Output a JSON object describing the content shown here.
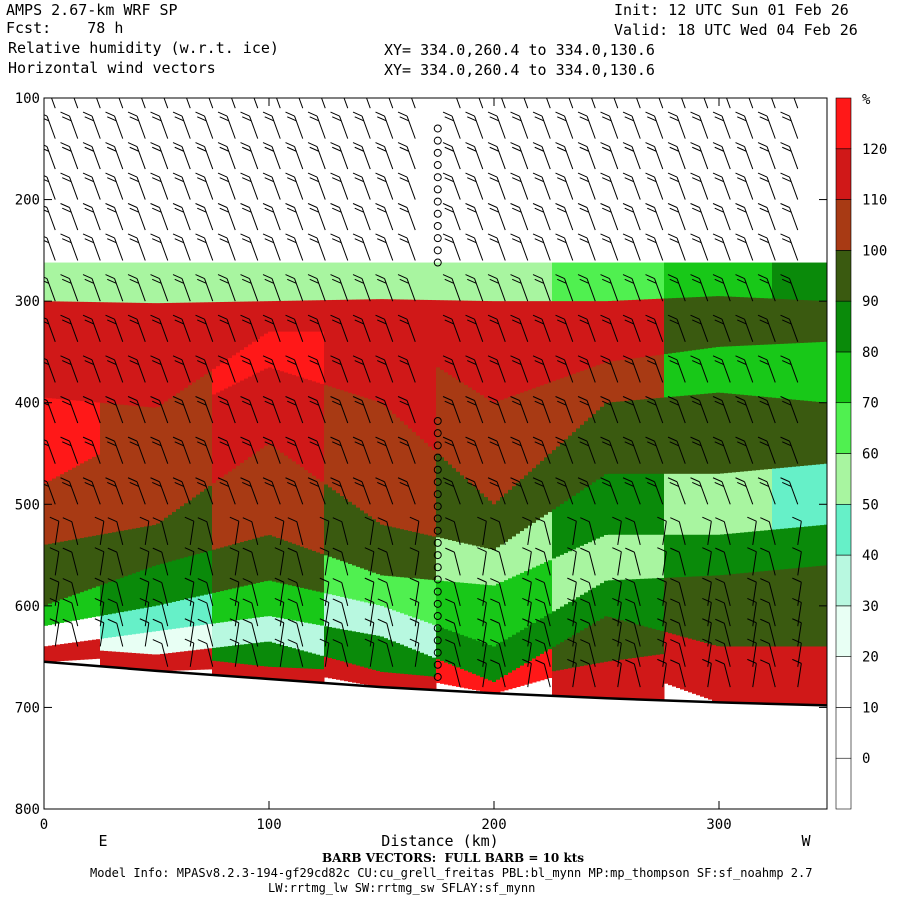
{
  "header": {
    "model": "AMPS 2.67-km WRF SP",
    "fcst": "Fcst:    78 h",
    "field1": "Relative humidity (w.r.t. ice)",
    "field2": "Horizontal wind vectors",
    "init": "Init: 12 UTC Sun 01 Feb 26",
    "valid": "Valid: 18 UTC Wed 04 Feb 26",
    "xy1": "XY= 334.0,260.4 to 334.0,130.6",
    "xy2": "XY= 334.0,260.4 to 334.0,130.6"
  },
  "footer": {
    "barb": "BARB VECTORS:  FULL BARB = 10 kts",
    "info1": "Model Info: MPASv8.2.3-194-gf29cd82c CU:cu_grell_freitas PBL:bl_mynn MP:mp_thompson SF:sf_noahmp 2.7",
    "info2": "LW:rrtmg_lw SW:rrtmg_sw SFLAY:sf_mynn"
  },
  "chart_data": {
    "type": "heatmap",
    "title": "Relative humidity (w.r.t. ice)",
    "xlabel": "Distance (km)",
    "ylabel": "",
    "xlim": [
      0,
      348
    ],
    "ylim": [
      800,
      100
    ],
    "x_ticks": [
      0,
      100,
      200,
      300
    ],
    "y_ticks": [
      100,
      200,
      300,
      400,
      500,
      600,
      700,
      800
    ],
    "x_end_labels": {
      "left": "E",
      "right": "W"
    },
    "colorbar": {
      "unit": "%",
      "levels": [
        0,
        10,
        20,
        30,
        40,
        50,
        60,
        70,
        80,
        90,
        100,
        110,
        120
      ],
      "colors": [
        "#ffffff",
        "#ffffff",
        "#ffffff",
        "#e8fff4",
        "#b8f8e0",
        "#66f0c8",
        "#a8f5a0",
        "#50f050",
        "#18c818",
        "#0a8a0a",
        "#3a5a10",
        "#a83a14",
        "#d01818",
        "#ff1818"
      ]
    },
    "terrain": {
      "x": [
        0,
        50,
        100,
        150,
        200,
        250,
        300,
        348
      ],
      "p": [
        655,
        664,
        672,
        680,
        686,
        691,
        695,
        698
      ]
    },
    "rh_profiles": [
      {
        "x": 0,
        "layers": [
          [
            100,
            262,
            0
          ],
          [
            262,
            300,
            50
          ],
          [
            300,
            395,
            112
          ],
          [
            395,
            480,
            122
          ],
          [
            480,
            540,
            108
          ],
          [
            540,
            600,
            95
          ],
          [
            600,
            620,
            72
          ],
          [
            620,
            640,
            15
          ],
          [
            640,
            655,
            110
          ]
        ]
      },
      {
        "x": 50,
        "layers": [
          [
            100,
            262,
            0
          ],
          [
            262,
            302,
            50
          ],
          [
            302,
            405,
            112
          ],
          [
            405,
            420,
            108
          ],
          [
            420,
            520,
            102
          ],
          [
            520,
            560,
            95
          ],
          [
            560,
            600,
            85
          ],
          [
            600,
            625,
            45
          ],
          [
            625,
            648,
            20
          ],
          [
            648,
            664,
            110
          ]
        ]
      },
      {
        "x": 100,
        "layers": [
          [
            100,
            262,
            0
          ],
          [
            262,
            300,
            55
          ],
          [
            300,
            330,
            112
          ],
          [
            330,
            365,
            122
          ],
          [
            365,
            440,
            112
          ],
          [
            440,
            530,
            102
          ],
          [
            530,
            575,
            95
          ],
          [
            575,
            610,
            75
          ],
          [
            610,
            635,
            35
          ],
          [
            635,
            660,
            80
          ],
          [
            660,
            672,
            110
          ]
        ]
      },
      {
        "x": 150,
        "layers": [
          [
            100,
            262,
            0
          ],
          [
            262,
            298,
            55
          ],
          [
            298,
            330,
            115
          ],
          [
            330,
            400,
            112
          ],
          [
            400,
            520,
            102
          ],
          [
            520,
            570,
            92
          ],
          [
            570,
            600,
            62
          ],
          [
            600,
            630,
            35
          ],
          [
            630,
            665,
            80
          ],
          [
            665,
            680,
            118
          ]
        ]
      },
      {
        "x": 200,
        "layers": [
          [
            100,
            262,
            0
          ],
          [
            262,
            300,
            55
          ],
          [
            300,
            400,
            112
          ],
          [
            400,
            500,
            102
          ],
          [
            500,
            545,
            92
          ],
          [
            545,
            580,
            52
          ],
          [
            580,
            640,
            75
          ],
          [
            640,
            675,
            88
          ],
          [
            675,
            686,
            122
          ]
        ]
      },
      {
        "x": 250,
        "layers": [
          [
            100,
            262,
            0
          ],
          [
            262,
            300,
            65
          ],
          [
            300,
            360,
            110
          ],
          [
            360,
            400,
            102
          ],
          [
            400,
            470,
            92
          ],
          [
            470,
            530,
            82
          ],
          [
            530,
            575,
            55
          ],
          [
            575,
            610,
            85
          ],
          [
            610,
            655,
            95
          ],
          [
            655,
            691,
            118
          ]
        ]
      },
      {
        "x": 300,
        "layers": [
          [
            100,
            262,
            0
          ],
          [
            262,
            295,
            75
          ],
          [
            295,
            345,
            95
          ],
          [
            345,
            390,
            72
          ],
          [
            390,
            470,
            92
          ],
          [
            470,
            530,
            55
          ],
          [
            530,
            570,
            82
          ],
          [
            570,
            640,
            95
          ],
          [
            640,
            695,
            118
          ]
        ]
      },
      {
        "x": 348,
        "layers": [
          [
            100,
            262,
            0
          ],
          [
            262,
            300,
            85
          ],
          [
            300,
            340,
            92
          ],
          [
            340,
            400,
            75
          ],
          [
            400,
            460,
            92
          ],
          [
            460,
            520,
            45
          ],
          [
            520,
            560,
            82
          ],
          [
            560,
            640,
            95
          ],
          [
            640,
            698,
            118
          ]
        ]
      }
    ],
    "barb_columns_km": [
      5,
      15,
      25,
      35,
      45,
      55,
      65,
      75,
      85,
      95,
      105,
      115,
      125,
      135,
      145,
      155,
      165,
      185,
      195,
      205,
      215,
      225,
      235,
      245,
      255,
      265,
      275,
      285,
      295,
      305,
      315,
      325,
      335
    ],
    "calm_column_km": 175,
    "barb_levels_hpa": [
      110,
      140,
      170,
      200,
      230,
      260,
      300,
      340,
      380,
      420,
      460,
      500,
      540,
      570,
      600,
      620,
      640,
      660,
      680
    ]
  }
}
